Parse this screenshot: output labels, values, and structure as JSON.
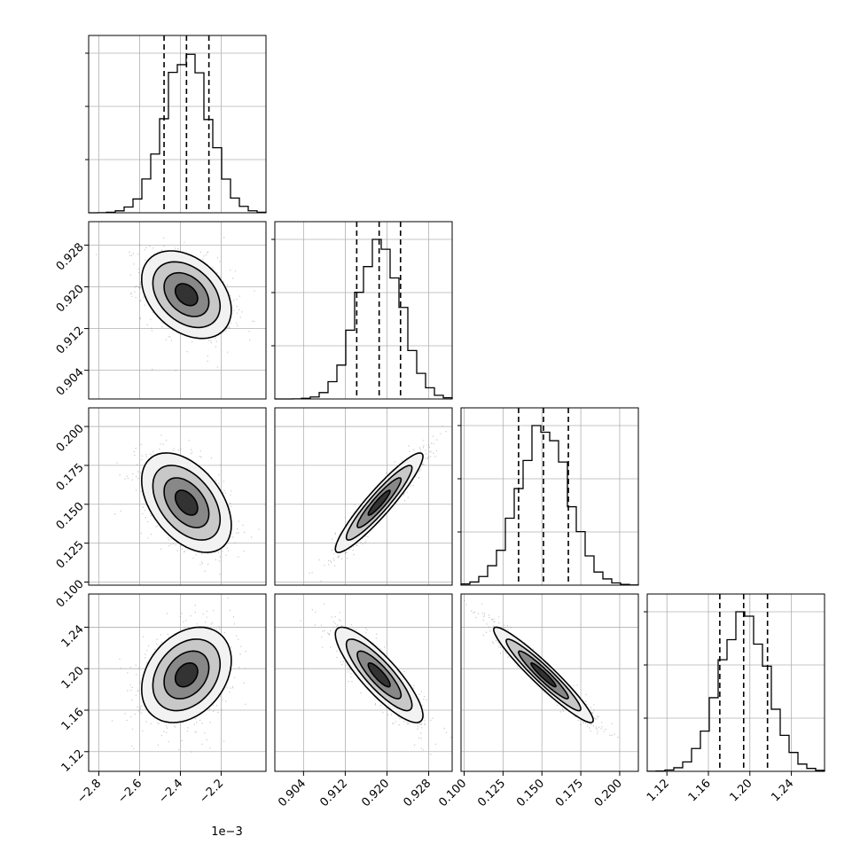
{
  "chart_data": {
    "type": "corner",
    "grid": true,
    "style": {
      "ink": "#000000",
      "grid": "#b0b0b0",
      "points": "#888888",
      "density": "#000000"
    },
    "offset_label": "1e−3",
    "params": [
      {
        "range": [
          -2.85,
          -1.98
        ],
        "ticks": [
          -2.8,
          -2.6,
          -2.4,
          -2.2
        ],
        "tick_labels": [
          "−2.8",
          "−2.6",
          "−2.4",
          "−2.2"
        ],
        "median": -2.37,
        "q16": -2.48,
        "q84": -2.26,
        "hist_peak": 1.0
      },
      {
        "range": [
          0.8985,
          0.9325
        ],
        "ticks": [
          0.904,
          0.912,
          0.92,
          0.928
        ],
        "tick_labels": [
          "0.904",
          "0.912",
          "0.920",
          "0.928"
        ],
        "median": 0.9185,
        "q16": 0.9142,
        "q84": 0.9226,
        "hist_peak": 1.0
      },
      {
        "range": [
          0.098,
          0.212
        ],
        "ticks": [
          0.1,
          0.125,
          0.15,
          0.175,
          0.2
        ],
        "tick_labels": [
          "0.100",
          "0.125",
          "0.150",
          "0.175",
          "0.200"
        ],
        "median": 0.151,
        "q16": 0.135,
        "q84": 0.167,
        "hist_peak": 1.0
      },
      {
        "range": [
          1.101,
          1.272
        ],
        "ticks": [
          1.12,
          1.16,
          1.2,
          1.24
        ],
        "tick_labels": [
          "1.12",
          "1.16",
          "1.20",
          "1.24"
        ],
        "median": 1.194,
        "q16": 1.171,
        "q84": 1.217,
        "hist_peak": 1.0
      }
    ],
    "correlations": {
      "1,0": -0.35,
      "2,0": -0.45,
      "2,1": 0.93,
      "3,0": 0.3,
      "3,1": -0.85,
      "3,2": -0.95
    }
  }
}
